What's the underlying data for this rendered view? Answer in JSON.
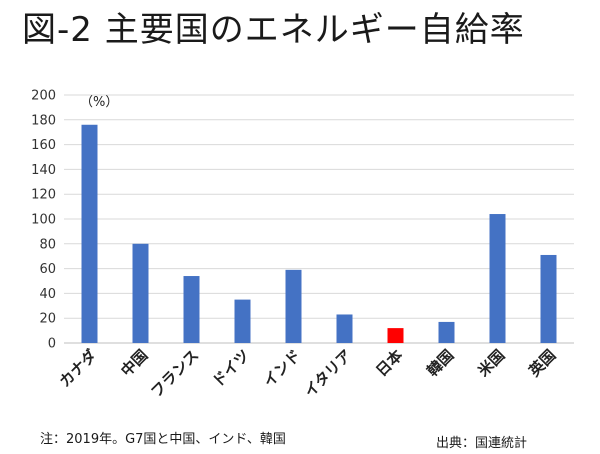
{
  "chart_data": {
    "type": "bar",
    "title": "図-2 主要国のエネルギー自給率",
    "unit_label": "（%）",
    "categories": [
      "カナダ",
      "中国",
      "フランス",
      "ドイツ",
      "インド",
      "イタリア",
      "日本",
      "韓国",
      "米国",
      "英国"
    ],
    "values": [
      176,
      80,
      54,
      35,
      59,
      23,
      12,
      17,
      104,
      71
    ],
    "highlight_index": 6,
    "ylim": [
      0,
      200
    ],
    "yticks": [
      0,
      20,
      40,
      60,
      80,
      100,
      120,
      140,
      160,
      180,
      200
    ],
    "grid": true,
    "legend": "none",
    "xlabel": "",
    "ylabel": ""
  },
  "colors": {
    "bar": "#4472C4",
    "highlight": "#FF0000",
    "grid": "#D9D9D9",
    "axis": "#BFBFBF"
  },
  "footer": {
    "note": "注：2019年。G7国と中国、インド、韓国",
    "source": "出典：国連統計"
  }
}
